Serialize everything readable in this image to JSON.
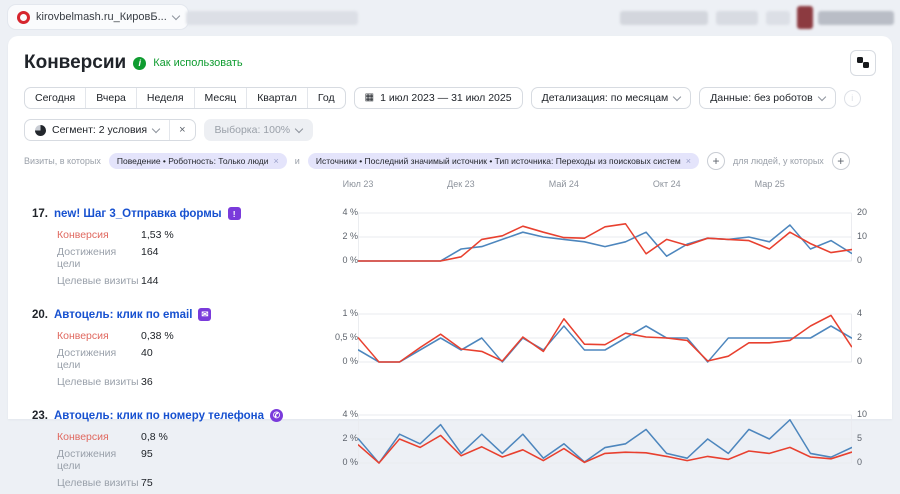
{
  "browser_tab": {
    "title": "kirovbelmash.ru_КировБ..."
  },
  "header": {
    "title": "Конверсии",
    "help_link": "Как использовать"
  },
  "toolbar": {
    "period_buttons": [
      "Сегодня",
      "Вчера",
      "Неделя",
      "Месяц",
      "Квартал",
      "Год"
    ],
    "date_range": "1 июл 2023 — 31 июл 2025",
    "detail": "Детализация: по месяцам",
    "data_mode": "Данные: без роботов"
  },
  "segment": {
    "label": "Сегмент: 2 условия",
    "close": "×",
    "sample": "Выборка: 100%"
  },
  "filters": {
    "visits_label": "Визиты, в которых",
    "and_label": "и",
    "people_label": "для людей, у которых",
    "chips": [
      "Поведение • Роботность: Только люди",
      "Источники • Последний значимый источник • Тип источника: Переходы из поисковых систем"
    ]
  },
  "timeline_labels": [
    "Июл 23",
    "Дек 23",
    "Май 24",
    "Окт 24",
    "Мар 25"
  ],
  "goals": [
    {
      "number": "17.",
      "title": "new! Шаг 3_Отправка формы",
      "icon": {
        "name": "form-alert-icon",
        "glyph": "!"
      },
      "stats": [
        {
          "label": "Конверсия",
          "value": "1,53 %"
        },
        {
          "label": "Достижения цели",
          "value": "164"
        },
        {
          "label": "Целевые визиты",
          "value": "144"
        }
      ]
    },
    {
      "number": "20.",
      "title": "Автоцель: клик по email",
      "icon": {
        "name": "email-icon",
        "glyph": "✉"
      },
      "stats": [
        {
          "label": "Конверсия",
          "value": "0,38 %"
        },
        {
          "label": "Достижения цели",
          "value": "40"
        },
        {
          "label": "Целевые визиты",
          "value": "36"
        }
      ]
    },
    {
      "number": "23.",
      "title": "Автоцель: клик по номеру телефона",
      "icon": {
        "name": "phone-icon",
        "glyph": "✆"
      },
      "stats": [
        {
          "label": "Конверсия",
          "value": "0,8 %"
        },
        {
          "label": "Достижения цели",
          "value": "95"
        },
        {
          "label": "Целевые визиты",
          "value": "75"
        }
      ]
    }
  ],
  "colors": {
    "line_red": "#e8402f",
    "line_blue": "#4d86bd",
    "link_green": "#0f9c30",
    "goal_link_blue": "#1751d0",
    "icon_purple": "#7a3bdb",
    "chip_bg": "#e4e4fb",
    "favicon_red": "#d6252e"
  },
  "chart_data": [
    {
      "type": "line",
      "title": "17. new! Шаг 3_Отправка формы — динамика по месяцам",
      "x_labels": [
        "Июл 23",
        "Дек 23",
        "Май 24",
        "Окт 24",
        "Мар 25"
      ],
      "x_range": [
        "Июл 2023",
        "Июл 2025"
      ],
      "left_axis": {
        "ticks": [
          "4 %",
          "2 %",
          "0 %"
        ],
        "max": 4,
        "label": "Конверсия, %"
      },
      "right_axis": {
        "ticks": [
          "20",
          "10",
          "0"
        ],
        "max": 20,
        "label": "Достижения цели"
      },
      "grid": true,
      "series": [
        {
          "name": "Конверсия, %",
          "axis": "left",
          "color": "#e8402f",
          "values": [
            0,
            0,
            0,
            0,
            0,
            0.35,
            1.8,
            2.1,
            2.9,
            2.4,
            1.95,
            1.9,
            2.85,
            3.1,
            0.6,
            1.8,
            1.3,
            1.9,
            1.8,
            1.7,
            1.0,
            2.4,
            1.45,
            0.7,
            0.95
          ]
        },
        {
          "name": "Достижения цели",
          "axis": "right",
          "color": "#4d86bd",
          "values": [
            0,
            0,
            0,
            0,
            0,
            5,
            6,
            9,
            12,
            10,
            9,
            8,
            6,
            8,
            12,
            2,
            7,
            9.5,
            9,
            10,
            8,
            15,
            5,
            8.5,
            3.2
          ]
        }
      ]
    },
    {
      "type": "line",
      "title": "20. Автоцель: клик по email — динамика по месяцам",
      "x_labels": [
        "Июл 23",
        "Дек 23",
        "Май 24",
        "Окт 24",
        "Мар 25"
      ],
      "x_range": [
        "Июл 2023",
        "Июл 2025"
      ],
      "left_axis": {
        "ticks": [
          "1 %",
          "0,5 %",
          "0 %"
        ],
        "max": 1,
        "label": "Конверсия, %"
      },
      "right_axis": {
        "ticks": [
          "4",
          "2",
          "0"
        ],
        "max": 4,
        "label": "Достижения цели"
      },
      "grid": true,
      "series": [
        {
          "name": "Конверсия, %",
          "axis": "left",
          "color": "#e8402f",
          "values": [
            0.5,
            0,
            0,
            0.3,
            0.58,
            0.27,
            0.22,
            0.02,
            0.52,
            0.22,
            0.9,
            0.37,
            0.36,
            0.6,
            0.52,
            0.5,
            0.45,
            0.02,
            0.12,
            0.4,
            0.4,
            0.45,
            0.75,
            0.97,
            0.32
          ]
        },
        {
          "name": "Достижения цели",
          "axis": "right",
          "color": "#4d86bd",
          "values": [
            1,
            0,
            0,
            1,
            2,
            1,
            2,
            0,
            2,
            1,
            3,
            1,
            1,
            2,
            3,
            2,
            2,
            0,
            2,
            2,
            2,
            2,
            2,
            3,
            2
          ]
        }
      ]
    },
    {
      "type": "line",
      "title": "23. Автоцель: клик по номеру телефона — динамика по месяцам",
      "x_labels": [
        "Июл 23",
        "Дек 23",
        "Май 24",
        "Окт 24",
        "Мар 25"
      ],
      "x_range": [
        "Июл 2023",
        "Июл 2025"
      ],
      "left_axis": {
        "ticks": [
          "4 %",
          "2 %",
          "0 %"
        ],
        "max": 4,
        "label": "Конверсия, %"
      },
      "right_axis": {
        "ticks": [
          "10",
          "5",
          "0"
        ],
        "max": 10,
        "label": "Достижения цели"
      },
      "grid": true,
      "series": [
        {
          "name": "Конверсия, %",
          "axis": "left",
          "color": "#e8402f",
          "values": [
            1.5,
            0,
            2.0,
            1.3,
            2.3,
            0.6,
            1.35,
            0.5,
            1.1,
            0.2,
            1.2,
            0.05,
            0.8,
            0.9,
            0.85,
            0.55,
            0.2,
            0.55,
            0.3,
            1.0,
            0.8,
            1.3,
            0.5,
            0.35,
            0.9
          ]
        },
        {
          "name": "Достижения цели",
          "axis": "right",
          "color": "#4d86bd",
          "values": [
            5,
            0,
            6,
            4,
            8,
            2,
            6,
            2,
            6,
            1,
            4,
            0.2,
            3.2,
            4,
            7,
            2,
            1,
            5,
            2,
            7,
            5,
            9,
            2,
            1.2,
            3.2
          ]
        }
      ]
    }
  ]
}
